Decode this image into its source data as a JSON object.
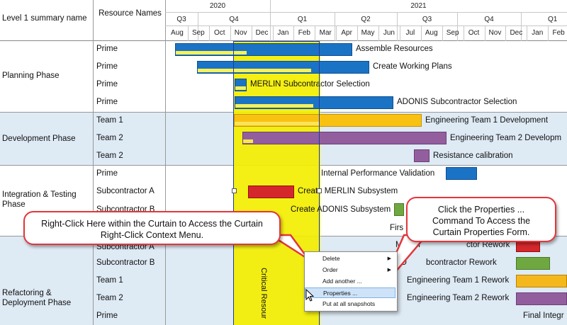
{
  "header": {
    "level1": "Level 1 summary name",
    "resources": "Resource Names",
    "years": [
      "2020",
      "2021"
    ],
    "quarters": [
      "Q3",
      "Q4",
      "Q1",
      "Q2",
      "Q3",
      "Q4",
      "Q1"
    ],
    "months": [
      "Aug",
      "Sep",
      "Oct",
      "Nov",
      "Dec",
      "Jan",
      "Feb",
      "Mar",
      "Apr",
      "May",
      "Jun",
      "Jul",
      "Aug",
      "Sep",
      "Oct",
      "Nov",
      "Dec",
      "Jan",
      "Feb"
    ]
  },
  "groups": [
    {
      "name": "Planning Phase"
    },
    {
      "name": "Development Phase"
    },
    {
      "name": "Integration & Testing Phase"
    },
    {
      "name": "Refactoring & Deployment Phase"
    }
  ],
  "rows": [
    {
      "resource": "Prime",
      "task": "Assemble Resources"
    },
    {
      "resource": "Prime",
      "task": "Create Working Plans"
    },
    {
      "resource": "Prime",
      "task": "MERLIN Subcontractor Selection"
    },
    {
      "resource": "Prime",
      "task": "ADONIS Subcontractor Selection"
    },
    {
      "resource": "Team 1",
      "task": "Engineering Team 1 Development"
    },
    {
      "resource": "Team 2",
      "task": "Engineering Team 2 Developm"
    },
    {
      "resource": "Team 2",
      "task": "Resistance calibration"
    },
    {
      "resource": "Prime",
      "task": "Internal Performance Validation"
    },
    {
      "resource": "Subcontractor A",
      "task": "Create MERLIN Subsystem"
    },
    {
      "resource": "Subcontractor B",
      "task": "Create ADONIS Subsystem"
    },
    {
      "resource": "",
      "task": "Firs"
    },
    {
      "resource": "Subcontractor A",
      "task": "MERLI"
    },
    {
      "resource": "Subcontractor B",
      "task": "AD"
    },
    {
      "resource": "Team 1",
      "task": "Engineering Team 1 Rework"
    },
    {
      "resource": "Team 2",
      "task": "Engineering Team 2 Rework"
    },
    {
      "resource": "Prime",
      "task": "Final Integr"
    }
  ],
  "rework_texts": {
    "a": "ctor Rework",
    "b": "bcontractor Rework"
  },
  "curtain": {
    "label": "Critical Resour"
  },
  "callouts": {
    "left": "Right-Click Here within the Curtain to Access the Curtain Right-Click Context Menu.",
    "right": "Click the Properties ... Command To Access the Curtain Properties Form."
  },
  "context_menu": {
    "items": [
      "Delete",
      "Order",
      "Add another ...",
      "Properties ...",
      "Put at all snapshots"
    ]
  },
  "colors": {
    "blue": "#1b73c5",
    "yellow": "#f9c212",
    "purple": "#935e9e",
    "red": "#d5262c",
    "green": "#6fa840",
    "curtain": "#f3ee00",
    "callout_border": "#e3363b"
  }
}
